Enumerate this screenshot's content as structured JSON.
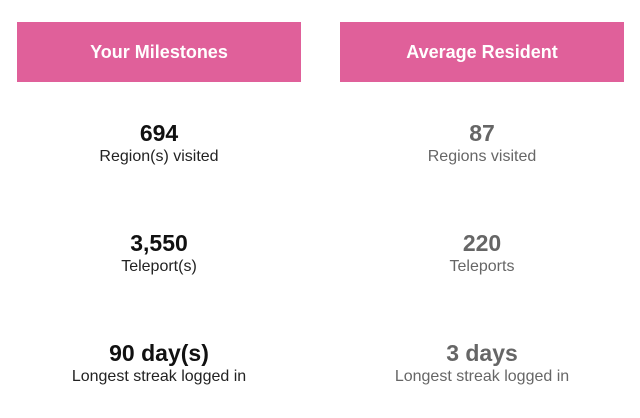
{
  "colors": {
    "header_background": "#e0609a",
    "header_text": "#ffffff",
    "user_value": "#111111",
    "average_value": "#666666"
  },
  "your_milestones": {
    "title": "Your Milestones",
    "stats": [
      {
        "value": "694",
        "label": "Region(s) visited"
      },
      {
        "value": "3,550",
        "label": "Teleport(s)"
      },
      {
        "value": "90 day(s)",
        "label": "Longest streak logged in"
      }
    ]
  },
  "average_resident": {
    "title": "Average Resident",
    "stats": [
      {
        "value": "87",
        "label": "Regions visited"
      },
      {
        "value": "220",
        "label": "Teleports"
      },
      {
        "value": "3 days",
        "label": "Longest streak logged in"
      }
    ]
  }
}
